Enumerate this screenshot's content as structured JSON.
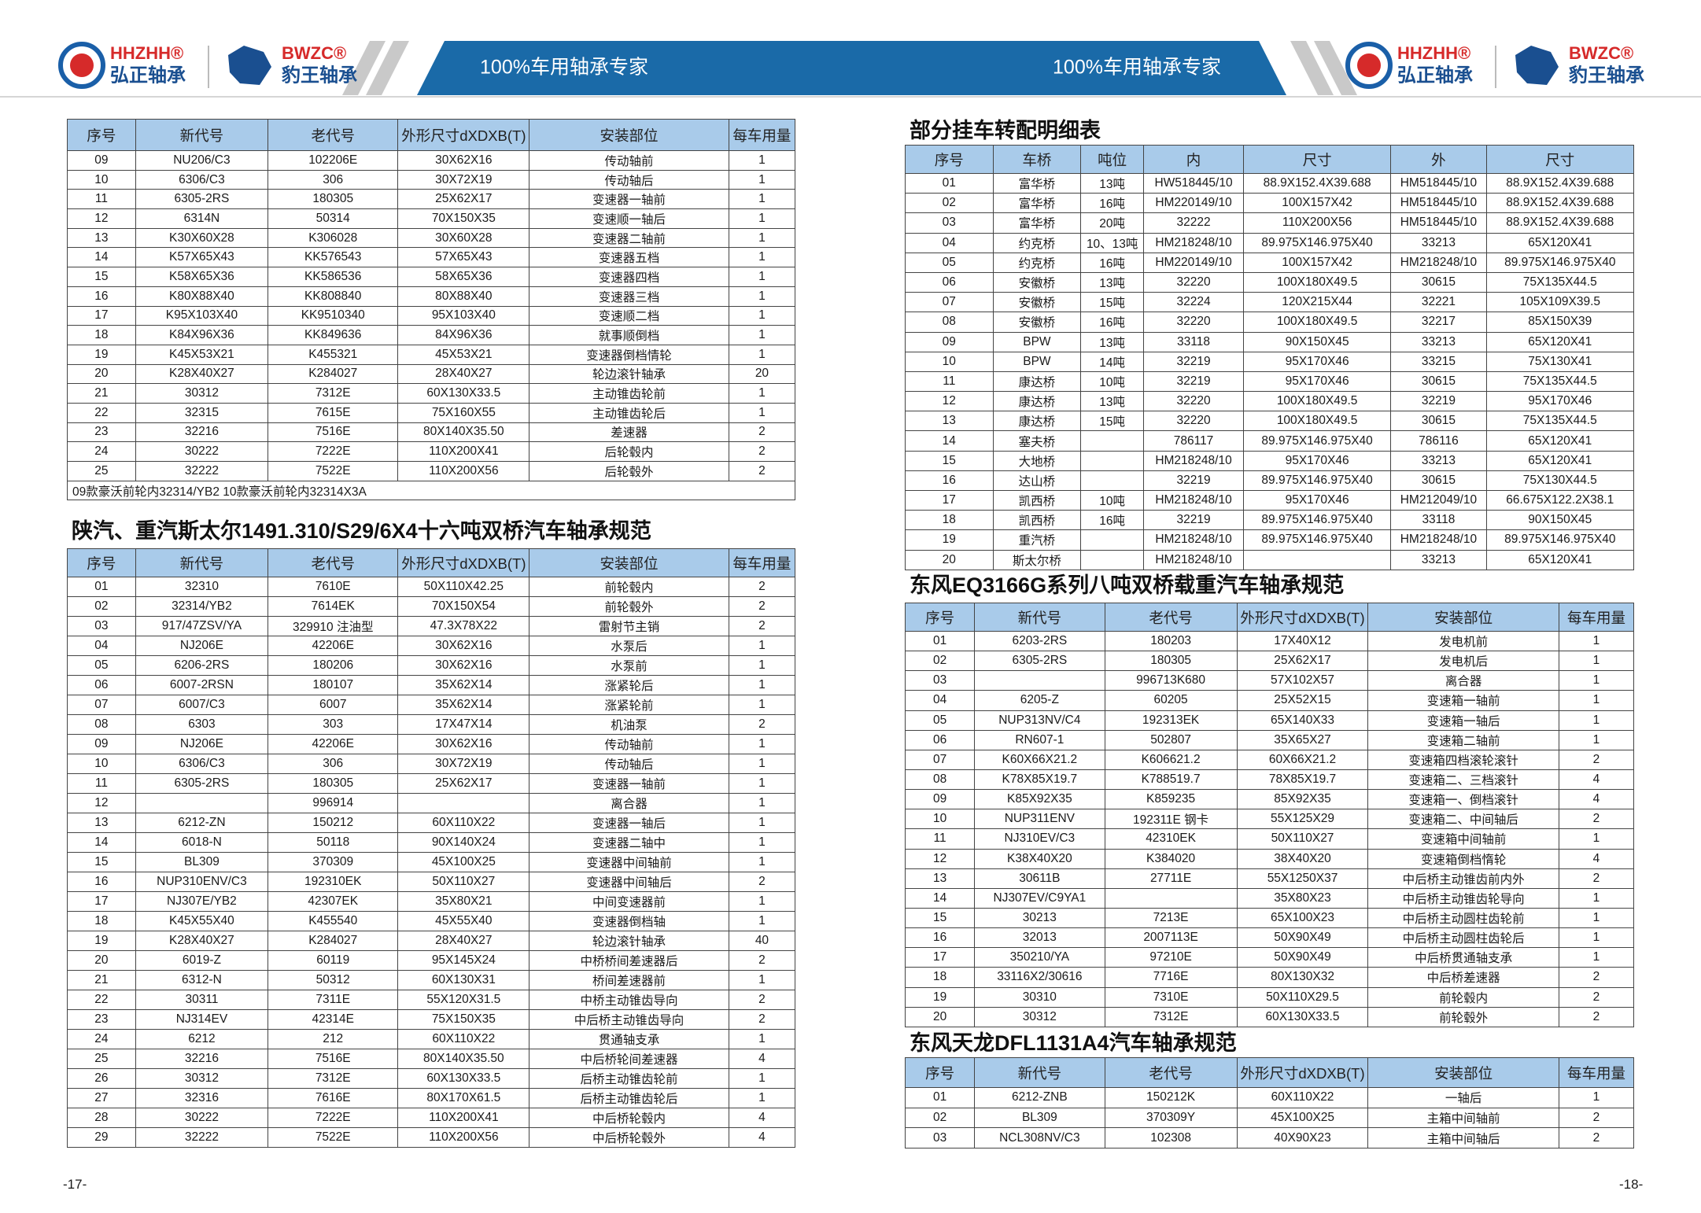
{
  "header": {
    "brand_1": "HHZHH®",
    "brand_1_cn": "弘正轴承",
    "brand_2": "BWZC®",
    "brand_2_cn": "豹王轴承",
    "slogan_left": "100%车用轴承专家",
    "slogan_right": "100%车用轴承专家"
  },
  "tables": [
    {
      "columns": [
        "序号",
        "新代号",
        "老代号",
        "外形尺寸dXDXB(T)",
        "安装部位",
        "每车用量"
      ],
      "rows": [
        [
          "09",
          "NU206/C3",
          "102206E",
          "30X62X16",
          "传动轴前",
          "1"
        ],
        [
          "10",
          "6306/C3",
          "306",
          "30X72X19",
          "传动轴后",
          "1"
        ],
        [
          "11",
          "6305-2RS",
          "180305",
          "25X62X17",
          "变速器一轴前",
          "1"
        ],
        [
          "12",
          "6314N",
          "50314",
          "70X150X35",
          "变速顺一轴后",
          "1"
        ],
        [
          "13",
          "K30X60X28",
          "K306028",
          "30X60X28",
          "变速器二轴前",
          "1"
        ],
        [
          "14",
          "K57X65X43",
          "KK576543",
          "57X65X43",
          "变速器五档",
          "1"
        ],
        [
          "15",
          "K58X65X36",
          "KK586536",
          "58X65X36",
          "变速器四档",
          "1"
        ],
        [
          "16",
          "K80X88X40",
          "KK808840",
          "80X88X40",
          "变速器三档",
          "1"
        ],
        [
          "17",
          "K95X103X40",
          "KK9510340",
          "95X103X40",
          "变速顺二档",
          "1"
        ],
        [
          "18",
          "K84X96X36",
          "KK849636",
          "84X96X36",
          "就事顺倒档",
          "1"
        ],
        [
          "19",
          "K45X53X21",
          "K455321",
          "45X53X21",
          "变速器倒档情轮",
          "1"
        ],
        [
          "20",
          "K28X40X27",
          "K284027",
          "28X40X27",
          "轮边滚针轴承",
          "20"
        ],
        [
          "21",
          "30312",
          "7312E",
          "60X130X33.5",
          "主动锥齿轮前",
          "1"
        ],
        [
          "22",
          "32315",
          "7615E",
          "75X160X55",
          "主动锥齿轮后",
          "1"
        ],
        [
          "23",
          "32216",
          "7516E",
          "80X140X35.50",
          "差速器",
          "2"
        ],
        [
          "24",
          "30222",
          "7222E",
          "110X200X41",
          "后轮毂内",
          "2"
        ],
        [
          "25",
          "32222",
          "7522E",
          "110X200X56",
          "后轮毂外",
          "2"
        ]
      ],
      "note": "09款豪沃前轮内32314/YB2 10款豪沃前轮内32314X3A"
    },
    {
      "title": "陕汽、重汽斯太尔1491.310/S29/6X4十六吨双桥汽车轴承规范",
      "columns": [
        "序号",
        "新代号",
        "老代号",
        "外形尺寸dXDXB(T)",
        "安装部位",
        "每车用量"
      ],
      "rows": [
        [
          "01",
          "32310",
          "7610E",
          "50X110X42.25",
          "前轮毂内",
          "2"
        ],
        [
          "02",
          "32314/YB2",
          "7614EK",
          "70X150X54",
          "前轮毂外",
          "2"
        ],
        [
          "03",
          "917/47ZSV/YA",
          "329910 注油型",
          "47.3X78X22",
          "雷射节主销",
          "2"
        ],
        [
          "04",
          "NJ206E",
          "42206E",
          "30X62X16",
          "水泵后",
          "1"
        ],
        [
          "05",
          "6206-2RS",
          "180206",
          "30X62X16",
          "水泵前",
          "1"
        ],
        [
          "06",
          "6007-2RSN",
          "180107",
          "35X62X14",
          "涨紧轮后",
          "1"
        ],
        [
          "07",
          "6007/C3",
          "6007",
          "35X62X14",
          "涨紧轮前",
          "1"
        ],
        [
          "08",
          "6303",
          "303",
          "17X47X14",
          "机油泵",
          "2"
        ],
        [
          "09",
          "NJ206E",
          "42206E",
          "30X62X16",
          "传动轴前",
          "1"
        ],
        [
          "10",
          "6306/C3",
          "306",
          "30X72X19",
          "传动轴后",
          "1"
        ],
        [
          "11",
          "6305-2RS",
          "180305",
          "25X62X17",
          "变速器一轴前",
          "1"
        ],
        [
          "12",
          null,
          "996914",
          null,
          "离合器",
          "1"
        ],
        [
          "13",
          "6212-ZN",
          "150212",
          "60X110X22",
          "变速器一轴后",
          "1"
        ],
        [
          "14",
          "6018-N",
          "50118",
          "90X140X24",
          "变速器二轴中",
          "1"
        ],
        [
          "15",
          "BL309",
          "370309",
          "45X100X25",
          "变速器中间轴前",
          "1"
        ],
        [
          "16",
          "NUP310ENV/C3",
          "192310EK",
          "50X110X27",
          "变速器中间轴后",
          "2"
        ],
        [
          "17",
          "NJ307E/YB2",
          "42307EK",
          "35X80X21",
          "中间变速器前",
          "1"
        ],
        [
          "18",
          "K45X55X40",
          "K455540",
          "45X55X40",
          "变速器倒档轴",
          "1"
        ],
        [
          "19",
          "K28X40X27",
          "K284027",
          "28X40X27",
          "轮边滚针轴承",
          "40"
        ],
        [
          "20",
          "6019-Z",
          "60119",
          "95X145X24",
          "中桥桥间差速器后",
          "2"
        ],
        [
          "21",
          "6312-N",
          "50312",
          "60X130X31",
          "桥间差速器前",
          "1"
        ],
        [
          "22",
          "30311",
          "7311E",
          "55X120X31.5",
          "中桥主动锥齿导向",
          "2"
        ],
        [
          "23",
          "NJ314EV",
          "42314E",
          "75X150X35",
          "中后桥主动锥齿导向",
          "2"
        ],
        [
          "24",
          "6212",
          "212",
          "60X110X22",
          "贯通轴支承",
          "1"
        ],
        [
          "25",
          "32216",
          "7516E",
          "80X140X35.50",
          "中后桥轮间差速器",
          "4"
        ],
        [
          "26",
          "30312",
          "7312E",
          "60X130X33.5",
          "后桥主动锥齿轮前",
          "1"
        ],
        [
          "27",
          "32316",
          "7616E",
          "80X170X61.5",
          "后桥主动锥齿轮后",
          "1"
        ],
        [
          "28",
          "30222",
          "7222E",
          "110X200X41",
          "中后桥轮毂内",
          "4"
        ],
        [
          "29",
          "32222",
          "7522E",
          "110X200X56",
          "中后桥轮毂外",
          "4"
        ]
      ]
    },
    {
      "title": "部分挂车转配明细表",
      "columns": [
        "序号",
        "车桥",
        "吨位",
        "内",
        "尺寸",
        "外",
        "尺寸"
      ],
      "rows": [
        [
          "01",
          "富华桥",
          "13吨",
          "HW518445/10",
          "88.9X152.4X39.688",
          "HM518445/10",
          "88.9X152.4X39.688"
        ],
        [
          "02",
          "富华桥",
          "16吨",
          "HM220149/10",
          "100X157X42",
          "HM518445/10",
          "88.9X152.4X39.688"
        ],
        [
          "03",
          "富华桥",
          "20吨",
          "32222",
          "110X200X56",
          "HM518445/10",
          "88.9X152.4X39.688"
        ],
        [
          "04",
          "约克桥",
          "10、13吨",
          "HM218248/10",
          "89.975X146.975X40",
          "33213",
          "65X120X41"
        ],
        [
          "05",
          "约克桥",
          "16吨",
          "HM220149/10",
          "100X157X42",
          "HM218248/10",
          "89.975X146.975X40"
        ],
        [
          "06",
          "安徽桥",
          "13吨",
          "32220",
          "100X180X49.5",
          "30615",
          "75X135X44.5"
        ],
        [
          "07",
          "安徽桥",
          "15吨",
          "32224",
          "120X215X44",
          "32221",
          "105X109X39.5"
        ],
        [
          "08",
          "安徽桥",
          "16吨",
          "32220",
          "100X180X49.5",
          "32217",
          "85X150X39"
        ],
        [
          "09",
          "BPW",
          "13吨",
          "33118",
          "90X150X45",
          "33213",
          "65X120X41"
        ],
        [
          "10",
          "BPW",
          "14吨",
          "32219",
          "95X170X46",
          "33215",
          "75X130X41"
        ],
        [
          "11",
          "康达桥",
          "10吨",
          "32219",
          "95X170X46",
          "30615",
          "75X135X44.5"
        ],
        [
          "12",
          "康达桥",
          "13吨",
          "32220",
          "100X180X49.5",
          "32219",
          "95X170X46"
        ],
        [
          "13",
          "康达桥",
          "15吨",
          "32220",
          "100X180X49.5",
          "30615",
          "75X135X44.5"
        ],
        [
          "14",
          "塞夫桥",
          null,
          "786117",
          "89.975X146.975X40",
          "786116",
          "65X120X41"
        ],
        [
          "15",
          "大地桥",
          null,
          "HM218248/10",
          "95X170X46",
          "33213",
          "65X120X41"
        ],
        [
          "16",
          "达山桥",
          null,
          "32219",
          "89.975X146.975X40",
          "30615",
          "75X130X44.5"
        ],
        [
          "17",
          "凯西桥",
          "10吨",
          "HM218248/10",
          "95X170X46",
          "HM212049/10",
          "66.675X122.2X38.1"
        ],
        [
          "18",
          "凯西桥",
          "16吨",
          "32219",
          "89.975X146.975X40",
          "33118",
          "90X150X45"
        ],
        [
          "19",
          "重汽桥",
          null,
          "HM218248/10",
          "89.975X146.975X40",
          "HM218248/10",
          "89.975X146.975X40"
        ],
        [
          "20",
          "斯太尔桥",
          null,
          "HM218248/10",
          null,
          "33213",
          "65X120X41"
        ]
      ]
    },
    {
      "title": "东风EQ3166G系列八吨双桥载重汽车轴承规范",
      "columns": [
        "序号",
        "新代号",
        "老代号",
        "外形尺寸dXDXB(T)",
        "安装部位",
        "每车用量"
      ],
      "rows": [
        [
          "01",
          "6203-2RS",
          "180203",
          "17X40X12",
          "发电机前",
          "1"
        ],
        [
          "02",
          "6305-2RS",
          "180305",
          "25X62X17",
          "发电机后",
          "1"
        ],
        [
          "03",
          null,
          "996713K680",
          "57X102X57",
          "离合器",
          "1"
        ],
        [
          "04",
          "6205-Z",
          "60205",
          "25X52X15",
          "变速箱一轴前",
          "1"
        ],
        [
          "05",
          "NUP313NV/C4",
          "192313EK",
          "65X140X33",
          "变速箱一轴后",
          "1"
        ],
        [
          "06",
          "RN607-1",
          "502807",
          "35X65X27",
          "变速箱二轴前",
          "1"
        ],
        [
          "07",
          "K60X66X21.2",
          "K606621.2",
          "60X66X21.2",
          "变速箱四档滚轮滚针",
          "2"
        ],
        [
          "08",
          "K78X85X19.7",
          "K788519.7",
          "78X85X19.7",
          "变速箱二、三档滚针",
          "4"
        ],
        [
          "09",
          "K85X92X35",
          "K859235",
          "85X92X35",
          "变速箱一、倒档滚针",
          "4"
        ],
        [
          "10",
          "NUP311ENV",
          "192311E 钢卡",
          "55X125X29",
          "变速箱二、中间轴后",
          "2"
        ],
        [
          "11",
          "NJ310EV/C3",
          "42310EK",
          "50X110X27",
          "变速箱中间轴前",
          "1"
        ],
        [
          "12",
          "K38X40X20",
          "K384020",
          "38X40X20",
          "变速箱倒档惰轮",
          "4"
        ],
        [
          "13",
          "30611B",
          "27711E",
          "55X1250X37",
          "中后桥主动锥齿前内外",
          "2"
        ],
        [
          "14",
          "NJ307EV/C9YA1",
          null,
          "35X80X23",
          "中后桥主动锥齿轮导向",
          "1"
        ],
        [
          "15",
          "30213",
          "7213E",
          "65X100X23",
          "中后桥主动圆柱齿轮前",
          "1"
        ],
        [
          "16",
          "32013",
          "2007113E",
          "50X90X49",
          "中后桥主动圆柱齿轮后",
          "1"
        ],
        [
          "17",
          "350210/YA",
          "97210E",
          "50X90X49",
          "中后桥贯通轴支承",
          "1"
        ],
        [
          "18",
          "33116X2/30616",
          "7716E",
          "80X130X32",
          "中后桥差速器",
          "2"
        ],
        [
          "19",
          "30310",
          "7310E",
          "50X110X29.5",
          "前轮毂内",
          "2"
        ],
        [
          "20",
          "30312",
          "7312E",
          "60X130X33.5",
          "前轮毂外",
          "2"
        ]
      ]
    },
    {
      "title": "东风天龙DFL1131A4汽车轴承规范",
      "columns": [
        "序号",
        "新代号",
        "老代号",
        "外形尺寸dXDXB(T)",
        "安装部位",
        "每车用量"
      ],
      "rows": [
        [
          "01",
          "6212-ZNB",
          "150212K",
          "60X110X22",
          "一轴后",
          "1"
        ],
        [
          "02",
          "BL309",
          "370309Y",
          "45X100X25",
          "主箱中间轴前",
          "2"
        ],
        [
          "03",
          "NCL308NV/C3",
          "102308",
          "40X90X23",
          "主箱中间轴后",
          "2"
        ]
      ]
    }
  ],
  "page_numbers": [
    "-17-",
    "-18-"
  ]
}
